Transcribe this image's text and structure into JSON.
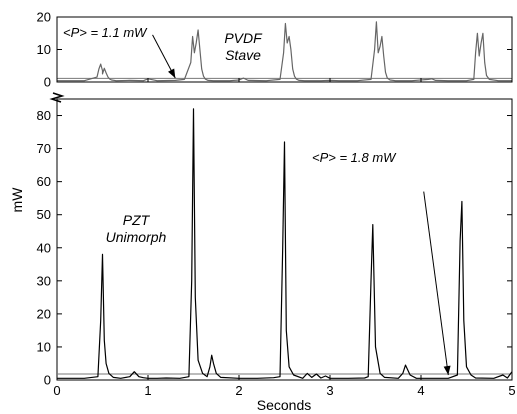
{
  "chart_data": [
    {
      "type": "line",
      "panel": "top",
      "ylim": [
        0,
        20
      ],
      "xlim": [
        0,
        5
      ],
      "grid": false,
      "yticks": [
        0,
        10,
        20
      ],
      "y_tick_labels": [
        "0",
        "10",
        "20"
      ],
      "series_label": [
        "PVDF",
        "Stave"
      ],
      "annotation": "<P> = 1.1 mW",
      "arrow_from": [
        1.05,
        14.5
      ],
      "arrow_to": [
        1.3,
        1.2
      ],
      "average_line": 1.1,
      "series": [
        {
          "color": "#666666",
          "x": [
            0.0,
            0.3,
            0.44,
            0.46,
            0.48,
            0.5,
            0.5,
            0.52,
            0.54,
            0.56,
            0.58,
            0.6,
            0.65,
            0.8,
            0.95,
            1.0,
            1.1,
            1.3,
            1.4,
            1.47,
            1.49,
            1.51,
            1.53,
            1.55,
            1.57,
            1.59,
            1.61,
            1.63,
            1.66,
            1.72,
            1.9,
            2.0,
            2.05,
            2.1,
            2.3,
            2.45,
            2.49,
            2.51,
            2.53,
            2.55,
            2.57,
            2.59,
            2.61,
            2.63,
            2.66,
            2.72,
            2.9,
            3.0,
            3.1,
            3.3,
            3.45,
            3.49,
            3.51,
            3.53,
            3.55,
            3.57,
            3.59,
            3.61,
            3.63,
            3.66,
            3.72,
            3.9,
            4.08,
            4.12,
            4.16,
            4.3,
            4.5,
            4.58,
            4.6,
            4.62,
            4.64,
            4.66,
            4.68,
            4.7,
            4.72,
            4.75,
            4.85,
            5.0
          ],
          "y": [
            0.4,
            0.4,
            1.5,
            4.0,
            5.5,
            3.5,
            2.5,
            4.2,
            2.8,
            1.5,
            0.9,
            0.6,
            0.4,
            0.5,
            0.4,
            1.0,
            0.4,
            0.5,
            0.8,
            6.0,
            14.0,
            9.0,
            12.0,
            16.0,
            10.0,
            4.0,
            1.8,
            0.9,
            0.5,
            0.4,
            0.4,
            0.6,
            1.2,
            0.5,
            0.4,
            0.8,
            9.0,
            18.0,
            12.0,
            14.0,
            10.0,
            4.0,
            1.8,
            0.9,
            0.5,
            0.4,
            0.4,
            0.5,
            0.4,
            0.4,
            0.8,
            10.0,
            18.5,
            9.0,
            11.0,
            14.0,
            8.0,
            3.0,
            1.2,
            0.6,
            0.4,
            0.4,
            0.8,
            1.0,
            0.5,
            0.4,
            0.4,
            0.8,
            9.0,
            15.0,
            8.0,
            12.0,
            15.0,
            6.0,
            2.0,
            0.8,
            0.4,
            0.4
          ]
        }
      ]
    },
    {
      "type": "line",
      "panel": "bottom",
      "ylim": [
        0,
        85
      ],
      "xlim": [
        0,
        5
      ],
      "grid": false,
      "yticks": [
        0,
        10,
        20,
        30,
        40,
        50,
        60,
        70,
        80
      ],
      "y_tick_labels": [
        "0",
        "10",
        "20",
        "30",
        "40",
        "50",
        "60",
        "70",
        "80"
      ],
      "xticks": [
        0,
        1,
        2,
        3,
        4,
        5
      ],
      "x_tick_labels": [
        "0",
        "1",
        "2",
        "3",
        "4",
        "5"
      ],
      "xlabel": "Seconds",
      "ylabel": "mW",
      "series_label": [
        "PZT",
        "Unimorph"
      ],
      "annotation": "<P> = 1.8 mW",
      "arrow_from": [
        4.03,
        57
      ],
      "arrow_to": [
        4.3,
        1.5
      ],
      "average_line": 1.8,
      "series": [
        {
          "color": "#000000",
          "x": [
            0.0,
            0.3,
            0.45,
            0.48,
            0.5,
            0.52,
            0.54,
            0.57,
            0.62,
            0.7,
            0.8,
            0.85,
            0.9,
            0.95,
            1.0,
            1.1,
            1.2,
            1.35,
            1.45,
            1.48,
            1.5,
            1.52,
            1.55,
            1.6,
            1.65,
            1.68,
            1.7,
            1.72,
            1.75,
            1.8,
            2.0,
            2.2,
            2.38,
            2.45,
            2.48,
            2.5,
            2.52,
            2.55,
            2.6,
            2.7,
            2.75,
            2.8,
            2.85,
            2.9,
            2.95,
            3.0,
            3.2,
            3.38,
            3.42,
            3.45,
            3.47,
            3.5,
            3.55,
            3.6,
            3.75,
            3.8,
            3.83,
            3.88,
            3.95,
            4.1,
            4.3,
            4.4,
            4.43,
            4.45,
            4.47,
            4.5,
            4.55,
            4.6,
            4.8,
            4.9,
            4.95,
            5.0
          ],
          "y": [
            0.5,
            0.5,
            1.0,
            18.0,
            38.0,
            12.0,
            5.0,
            2.0,
            0.8,
            0.5,
            1.0,
            2.5,
            1.0,
            0.7,
            0.5,
            0.5,
            0.6,
            0.5,
            1.0,
            30.0,
            82.0,
            25.0,
            6.0,
            2.0,
            1.0,
            4.0,
            7.5,
            5.0,
            2.0,
            0.8,
            0.5,
            0.5,
            0.7,
            1.0,
            40.0,
            72.0,
            15.0,
            4.0,
            1.5,
            0.5,
            2.0,
            0.8,
            1.8,
            0.6,
            1.2,
            0.5,
            0.5,
            0.6,
            1.0,
            30.0,
            47.0,
            10.0,
            2.0,
            0.8,
            0.5,
            2.0,
            4.5,
            1.5,
            0.5,
            0.5,
            0.5,
            1.5,
            42.0,
            54.0,
            18.0,
            4.0,
            1.5,
            0.6,
            0.5,
            1.5,
            0.6,
            2.5
          ]
        }
      ]
    }
  ]
}
